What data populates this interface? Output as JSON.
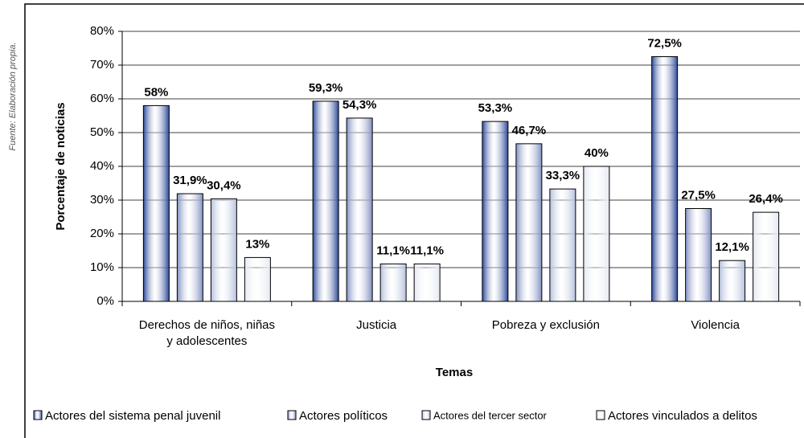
{
  "chart_data": {
    "type": "bar",
    "source": "Fuente: Elaboración propia.",
    "x_label": "Temas",
    "y_label": "Porcentaje de noticias",
    "categories": [
      "Derechos de niños, niñas y adolescentes",
      "Justicia",
      "Pobreza y exclusión",
      "Violencia"
    ],
    "series": [
      {
        "name": "Actores del sistema penal juvenil",
        "color": "#2b4797",
        "values": [
          58,
          59.3,
          53.3,
          72.5
        ],
        "value_labels": [
          "58%",
          "59,3%",
          "53,3%",
          "72,5%"
        ]
      },
      {
        "name": "Actores políticos",
        "color": "#7f8fc0",
        "values": [
          31.9,
          54.3,
          46.7,
          27.5
        ],
        "value_labels": [
          "31,9%",
          "54,3%",
          "46,7%",
          "27,5%"
        ]
      },
      {
        "name": "Actores del tercer sector",
        "color": "#b4c0dc",
        "values": [
          30.4,
          11.1,
          33.3,
          12.1
        ],
        "value_labels": [
          "30,4%",
          "11,1%",
          "33,3%",
          "12,1%"
        ]
      },
      {
        "name": "Actores vinculados a delitos",
        "color": "#e4e8f2",
        "values": [
          13,
          11.1,
          40,
          26.4
        ],
        "value_labels": [
          "13%",
          "11,1%",
          "40%",
          "26,4%"
        ]
      }
    ],
    "ylim": [
      0,
      80
    ],
    "yticks": [
      {
        "value": 0,
        "label": "0%"
      },
      {
        "value": 10,
        "label": "10%"
      },
      {
        "value": 20,
        "label": "20%"
      },
      {
        "value": 30,
        "label": "30%"
      },
      {
        "value": 40,
        "label": "40%"
      },
      {
        "value": 50,
        "label": "50%"
      },
      {
        "value": 60,
        "label": "60%"
      },
      {
        "value": 70,
        "label": "70%"
      },
      {
        "value": 80,
        "label": "80%"
      }
    ],
    "grid": true
  }
}
